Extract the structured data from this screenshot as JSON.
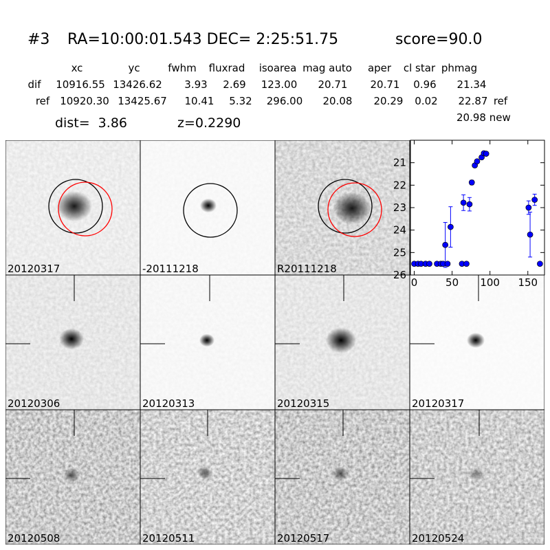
{
  "header": {
    "id": "#3",
    "coords": "RA=10:00:01.543 DEC= 2:25:51.75",
    "score": "score=90.0"
  },
  "table": {
    "columns": [
      "xc",
      "yc",
      "fwhm",
      "fluxrad",
      "isoarea",
      "mag auto",
      "aper",
      "cl star",
      "phmag"
    ],
    "rows": [
      [
        "dif",
        "10916.55",
        "13426.62",
        "3.93",
        "2.69",
        "123.00",
        "20.71",
        "20.71",
        "0.96",
        "21.34"
      ],
      [
        "ref",
        "10920.30",
        "13425.67",
        "10.41",
        "5.32",
        "296.00",
        "20.08",
        "20.29",
        "0.02",
        "22.87",
        "ref"
      ]
    ],
    "new": "20.98 new"
  },
  "dist": "dist=  3.86",
  "redshift": "z=0.2290",
  "stamps": [
    {
      "label": "20120317"
    },
    {
      "label": "-20111218"
    },
    {
      "label": "R20111218"
    },
    {
      "label": "20120306"
    },
    {
      "label": "20120313"
    },
    {
      "label": "20120315"
    },
    {
      "label": "20120317",
      "color": "#ff0000"
    },
    {
      "label": "20120508"
    },
    {
      "label": "20120511"
    },
    {
      "label": "20120517"
    },
    {
      "label": "20120524"
    }
  ],
  "chart_data": {
    "type": "scatter",
    "color": "#0000ff",
    "x": [
      0,
      5,
      9,
      15,
      20,
      30,
      35,
      38,
      41,
      44,
      48,
      63,
      65,
      69,
      73,
      76,
      80,
      83,
      89,
      92,
      95,
      151,
      153,
      159,
      166
    ],
    "values": [
      25.5,
      25.5,
      25.5,
      25.5,
      25.5,
      25.5,
      25.5,
      25.5,
      24.66,
      25.5,
      23.86,
      25.5,
      22.78,
      25.5,
      22.85,
      21.88,
      21.12,
      20.94,
      20.76,
      20.58,
      20.6,
      23.0,
      24.2,
      22.65,
      25.5
    ],
    "errors": [
      null,
      null,
      null,
      null,
      null,
      null,
      null,
      null,
      1.0,
      null,
      0.9,
      null,
      0.35,
      null,
      0.3,
      0.1,
      0.08,
      0.05,
      0.05,
      0.05,
      0.05,
      0.3,
      1.0,
      0.25,
      null
    ],
    "xlim": [
      -5,
      172
    ],
    "ylim": [
      26,
      20
    ],
    "xticks": [
      0,
      50,
      100,
      150
    ],
    "yticks": [
      21,
      22,
      23,
      24,
      25,
      26
    ]
  }
}
